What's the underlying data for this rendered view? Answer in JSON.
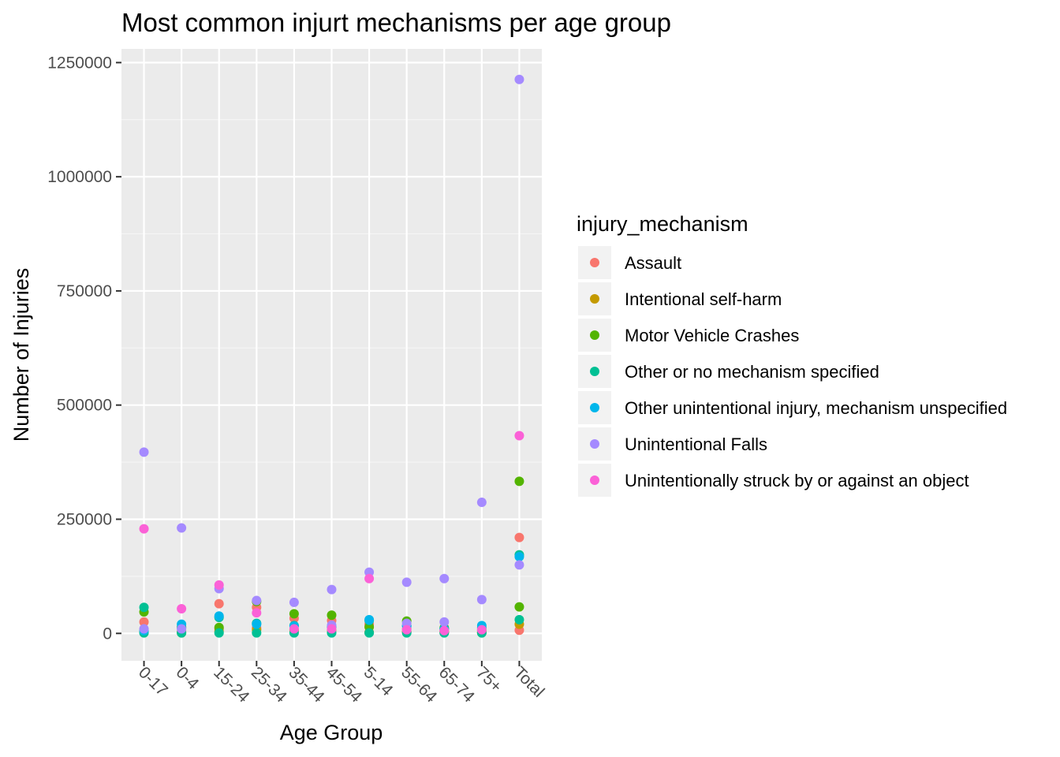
{
  "chart_data": {
    "type": "scatter",
    "title": "Most common injurt mechanisms per age group",
    "xlabel": "Age Group",
    "ylabel": "Number of Injuries",
    "categories": [
      "0-17",
      "0-4",
      "15-24",
      "25-34",
      "35-44",
      "45-54",
      "5-14",
      "55-64",
      "65-74",
      "75+",
      "Total"
    ],
    "ylim": [
      -60000,
      1280000
    ],
    "y_ticks": [
      0,
      250000,
      500000,
      750000,
      1000000,
      1250000
    ],
    "y_tick_labels": [
      "0",
      "250000",
      "500000",
      "750000",
      "1000000",
      "1250000"
    ],
    "grid": true,
    "legend": {
      "title": "injury_mechanism",
      "position": "right"
    },
    "series": [
      {
        "name": "Assault",
        "color": "#F8766D",
        "values": [
          null,
          null,
          65000,
          57000,
          33000,
          28000,
          20000,
          10000,
          5000,
          3000,
          210000
        ],
        "values_extra": [
          25000,
          5000,
          10000,
          12000,
          5000,
          5000,
          2000,
          3000,
          2000,
          1000,
          7000
        ]
      },
      {
        "name": "Intentional self-harm",
        "color": "#C49A00",
        "values": [
          3000,
          1000,
          5000,
          8000,
          8000,
          9000,
          2000,
          4000,
          3000,
          2000,
          20000
        ]
      },
      {
        "name": "Motor Vehicle Crashes",
        "color": "#53B400",
        "values": [
          47000,
          14000,
          13000,
          70000,
          43000,
          40000,
          14000,
          27000,
          12000,
          7000,
          333000
        ],
        "values_extra": [
          null,
          null,
          null,
          null,
          null,
          null,
          null,
          null,
          null,
          null,
          58000
        ]
      },
      {
        "name": "Other or no mechanism specified",
        "color": "#00C094",
        "values": [
          57000,
          12000,
          35000,
          22000,
          17000,
          14000,
          28000,
          17000,
          10000,
          12000,
          172000
        ],
        "values_extra": [
          1000,
          1000,
          1000,
          1000,
          1000,
          1000,
          1000,
          1000,
          1000,
          1000,
          30000
        ]
      },
      {
        "name": "Other unintentional injury, mechanism unspecified",
        "color": "#00B6EB",
        "values": [
          6000,
          20000,
          38000,
          20000,
          16000,
          15000,
          30000,
          16000,
          9000,
          17000,
          168000
        ]
      },
      {
        "name": "Unintentional Falls",
        "color": "#A58AFF",
        "values": [
          397000,
          231000,
          98000,
          72000,
          68000,
          96000,
          134000,
          112000,
          120000,
          287000,
          1213000
        ],
        "values_extra": [
          10000,
          10000,
          null,
          null,
          null,
          18000,
          null,
          22000,
          25000,
          74000,
          150000
        ]
      },
      {
        "name": "Unintentionally struck by or against an object",
        "color": "#FB61D7",
        "values": [
          229000,
          54000,
          106000,
          45000,
          10000,
          10000,
          120000,
          8000,
          6000,
          8000,
          433000
        ]
      }
    ]
  }
}
